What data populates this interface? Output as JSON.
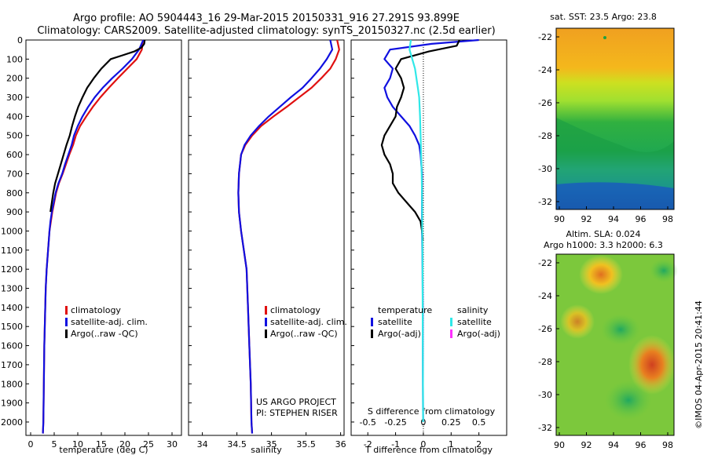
{
  "header": {
    "line1": "Argo profile: AO 5904443_16 29-Mar-2015 20150331_916 27.291S 93.899E",
    "line2": "Climatology: CARS2009. Satellite-adjusted climatology: synTS_20150327.nc (2.5d earlier)"
  },
  "colors": {
    "climatology": "#e01010",
    "satellite": "#1010e0",
    "argo": "#000000",
    "s_satellite": "#30e8e8",
    "s_argo": "#ff30ff"
  },
  "watermark": "©IMOS 04-Apr-2015 20:41:44",
  "chart_data": [
    {
      "type": "line",
      "id": "temperature",
      "xlabel": "temperature (deg C)",
      "xlim": [
        -1,
        32
      ],
      "ylim": [
        2070,
        0
      ],
      "xticks": [
        0,
        5,
        10,
        15,
        20,
        25,
        30
      ],
      "yticks": [
        0,
        100,
        200,
        300,
        400,
        500,
        600,
        700,
        800,
        900,
        1000,
        1100,
        1200,
        1300,
        1400,
        1500,
        1600,
        1700,
        1800,
        1900,
        2000
      ],
      "legend": [
        "climatology",
        "satellite-adj. clim.",
        "Argo(..raw -QC)"
      ],
      "series": [
        {
          "name": "climatology",
          "color_key": "climatology",
          "x": [
            23.8,
            23.6,
            22.5,
            20.5,
            18.5,
            16.6,
            14.8,
            13.2,
            11.8,
            10.5,
            9.6,
            9.0,
            8.2,
            7.5,
            6.8,
            6.0,
            5.4,
            5.0,
            4.6,
            4.3,
            4.0,
            3.7,
            3.4,
            3.2,
            3.1,
            2.9,
            2.8,
            2.7,
            2.6
          ],
          "y": [
            0,
            50,
            100,
            150,
            200,
            250,
            300,
            350,
            400,
            450,
            500,
            550,
            600,
            650,
            700,
            750,
            800,
            850,
            900,
            950,
            1000,
            1100,
            1200,
            1300,
            1400,
            1600,
            1800,
            2000,
            2060
          ]
        },
        {
          "name": "satellite-adj. clim.",
          "color_key": "satellite",
          "x": [
            23.9,
            23.0,
            21.5,
            19.5,
            17.3,
            15.3,
            13.6,
            12.2,
            11.0,
            10.0,
            9.2,
            8.7,
            8.0,
            7.3,
            6.7,
            5.9,
            5.3,
            4.9,
            4.5,
            4.2,
            4.0,
            3.7,
            3.4,
            3.2,
            3.1,
            2.9,
            2.8,
            2.7,
            2.6
          ],
          "y": [
            0,
            50,
            100,
            150,
            200,
            250,
            300,
            350,
            400,
            450,
            500,
            550,
            600,
            650,
            700,
            750,
            800,
            850,
            900,
            950,
            1000,
            1100,
            1200,
            1300,
            1400,
            1600,
            1800,
            2000,
            2060
          ]
        },
        {
          "name": "Argo(..raw -QC)",
          "color_key": "argo",
          "x": [
            24.2,
            24.1,
            23.5,
            22.0,
            19.5,
            17.0,
            15.0,
            13.4,
            12.0,
            11.0,
            10.1,
            9.4,
            8.8,
            8.3,
            7.6,
            7.0,
            6.4,
            5.8,
            5.2,
            4.8,
            4.5,
            4.2
          ],
          "y": [
            0,
            20,
            40,
            60,
            80,
            100,
            150,
            200,
            250,
            300,
            350,
            400,
            450,
            500,
            550,
            600,
            650,
            700,
            750,
            800,
            850,
            900
          ]
        }
      ]
    },
    {
      "type": "line",
      "id": "salinity",
      "xlabel": "salinity",
      "xlim": [
        33.8,
        36.05
      ],
      "ylim": [
        2070,
        0
      ],
      "xticks": [
        34,
        34.5,
        35,
        35.5,
        36
      ],
      "legend": [
        "climatology",
        "satellite-adj. clim.",
        "Argo(..raw -QC)"
      ],
      "annotation": [
        "US ARGO PROJECT",
        "PI: STEPHEN RISER"
      ],
      "series": [
        {
          "name": "climatology",
          "color_key": "climatology",
          "x": [
            35.95,
            35.98,
            35.93,
            35.85,
            35.72,
            35.58,
            35.4,
            35.22,
            35.03,
            34.85,
            34.72,
            34.62,
            34.56,
            34.53,
            34.52,
            34.53,
            34.56,
            34.6,
            34.64,
            34.66,
            34.68,
            34.7,
            34.71,
            34.72
          ],
          "y": [
            0,
            50,
            100,
            150,
            200,
            250,
            300,
            350,
            400,
            450,
            500,
            550,
            600,
            700,
            800,
            900,
            1000,
            1100,
            1200,
            1400,
            1600,
            1800,
            2000,
            2060
          ]
        },
        {
          "name": "satellite-adj. clim.",
          "color_key": "satellite",
          "x": [
            35.85,
            35.88,
            35.8,
            35.7,
            35.58,
            35.45,
            35.28,
            35.12,
            34.96,
            34.82,
            34.7,
            34.61,
            34.56,
            34.53,
            34.52,
            34.53,
            34.56,
            34.6,
            34.64,
            34.66,
            34.68,
            34.7,
            34.71,
            34.72
          ],
          "y": [
            0,
            50,
            100,
            150,
            200,
            250,
            300,
            350,
            400,
            450,
            500,
            550,
            600,
            700,
            800,
            900,
            1000,
            1100,
            1200,
            1400,
            1600,
            1800,
            2000,
            2060
          ]
        }
      ]
    },
    {
      "type": "line",
      "id": "difference",
      "xlabel": "T difference from climatology",
      "xlim": [
        -2.6,
        3.0
      ],
      "ylim": [
        2070,
        0
      ],
      "xticks": [
        -2,
        -1,
        0,
        1,
        2
      ],
      "secondary_axis_label": "S difference from climatology",
      "secondary_ticks": [
        "-0.5",
        "-0.25",
        "0",
        "0.25",
        "0.5"
      ],
      "legend_groups": [
        {
          "title": "temperature",
          "items": [
            "satellite",
            "Argo(-adj)"
          ]
        },
        {
          "title": "salinity",
          "items": [
            "satellite",
            "Argo(-adj)"
          ]
        }
      ],
      "series": [
        {
          "name": "temperature satellite",
          "color_key": "satellite",
          "x": [
            2.0,
            0.3,
            -1.2,
            -1.4,
            -1.1,
            -1.2,
            -1.4,
            -1.3,
            -1.1,
            -0.8,
            -0.5,
            -0.3,
            -0.15,
            -0.1,
            -0.05,
            -0.05,
            -0.05,
            -0.03,
            -0.02,
            -0.02,
            -0.01
          ],
          "y": [
            0,
            20,
            50,
            100,
            150,
            200,
            250,
            300,
            350,
            400,
            450,
            500,
            550,
            600,
            700,
            800,
            1000,
            1200,
            1400,
            1600,
            2000
          ]
        },
        {
          "name": "temperature Argo(-adj)",
          "color_key": "argo",
          "x": [
            1.3,
            1.2,
            0.2,
            -0.8,
            -1.0,
            -0.8,
            -0.7,
            -0.8,
            -0.95,
            -1.0,
            -1.2,
            -1.4,
            -1.5,
            -1.4,
            -1.2,
            -1.1,
            -1.1,
            -0.9,
            -0.6,
            -0.3,
            -0.1,
            -0.05,
            -0.02
          ],
          "y": [
            0,
            30,
            60,
            100,
            150,
            200,
            250,
            300,
            350,
            400,
            450,
            500,
            550,
            600,
            650,
            700,
            750,
            800,
            850,
            900,
            950,
            1000,
            1050
          ]
        },
        {
          "name": "salinity satellite",
          "color_key": "s_satellite",
          "x": [
            -0.45,
            -0.5,
            -0.4,
            -0.3,
            -0.25,
            -0.2,
            -0.15,
            -0.12,
            -0.1,
            -0.08,
            -0.06,
            -0.05,
            -0.04,
            -0.03,
            -0.02,
            -0.01
          ],
          "y": [
            0,
            50,
            100,
            150,
            200,
            250,
            300,
            400,
            500,
            600,
            700,
            800,
            1000,
            1200,
            1600,
            2000
          ]
        }
      ]
    }
  ],
  "maps": [
    {
      "title": "sat. SST: 23.5 Argo: 23.8",
      "yticks": [
        "-22",
        "-24",
        "-26",
        "-28",
        "-30",
        "-32"
      ],
      "xticks": [
        "90",
        "92",
        "94",
        "96",
        "98"
      ]
    },
    {
      "title_line1": "Altim. SLA: 0.024",
      "title_line2": "Argo h1000: 3.3 h2000: 6.3",
      "yticks": [
        "-22",
        "-24",
        "-26",
        "-28",
        "-30",
        "-32"
      ],
      "xticks": [
        "90",
        "92",
        "94",
        "96",
        "98"
      ]
    }
  ]
}
